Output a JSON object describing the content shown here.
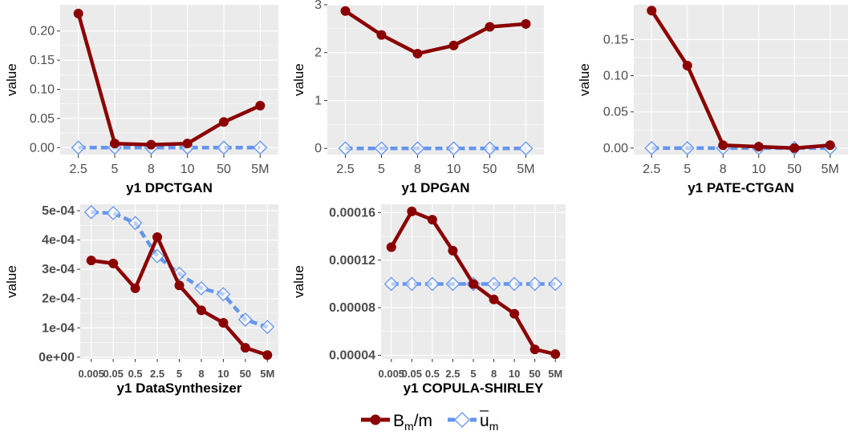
{
  "colors": {
    "bm_series": "#8b0000",
    "um_series": "#6495ed",
    "panel_bg": "#ebebeb",
    "grid": "#ffffff",
    "tick_text": "#4d4d4d"
  },
  "legend": {
    "bm_label_main": "B",
    "bm_label_sub": "m",
    "bm_label_tail": "/m",
    "um_label_main": "u",
    "um_label_sub": "m"
  },
  "chart_data": [
    {
      "type": "line",
      "title": "",
      "xlabel": "y1 DPCTGAN",
      "ylabel": "value",
      "categories": [
        "2.5",
        "5",
        "8",
        "10",
        "50",
        "5M"
      ],
      "ylim": [
        -0.012,
        0.245
      ],
      "yticks": [
        0.0,
        0.05,
        0.1,
        0.15,
        0.2
      ],
      "ytick_labels": [
        "0.00",
        "0.05",
        "0.10",
        "0.15",
        "0.20"
      ],
      "series": [
        {
          "name": "Bm/m",
          "values": [
            0.23,
            0.007,
            0.005,
            0.007,
            0.044,
            0.072
          ]
        },
        {
          "name": "um",
          "values": [
            0.0,
            0.0,
            0.0,
            0.0,
            0.0,
            0.0
          ]
        }
      ]
    },
    {
      "type": "line",
      "title": "",
      "xlabel": "y1 DPGAN",
      "ylabel": "value",
      "categories": [
        "2.5",
        "5",
        "8",
        "10",
        "50",
        "5M"
      ],
      "ylim": [
        -0.13,
        3.0
      ],
      "yticks": [
        0,
        1,
        2,
        3
      ],
      "ytick_labels": [
        "0",
        "1",
        "2",
        "3"
      ],
      "series": [
        {
          "name": "Bm/m",
          "values": [
            2.87,
            2.37,
            1.98,
            2.15,
            2.54,
            2.6
          ]
        },
        {
          "name": "um",
          "values": [
            0.0,
            0.0,
            0.0,
            0.0,
            0.0,
            0.0
          ]
        }
      ]
    },
    {
      "type": "line",
      "title": "",
      "xlabel": "y1 PATE-CTGAN",
      "ylabel": "value",
      "categories": [
        "2.5",
        "5",
        "8",
        "10",
        "50",
        "5M"
      ],
      "ylim": [
        -0.009,
        0.198
      ],
      "yticks": [
        0.0,
        0.05,
        0.1,
        0.15
      ],
      "ytick_labels": [
        "0.00",
        "0.05",
        "0.10",
        "0.15"
      ],
      "series": [
        {
          "name": "Bm/m",
          "values": [
            0.19,
            0.114,
            0.004,
            0.002,
            0.0,
            0.004
          ]
        },
        {
          "name": "um",
          "values": [
            0.0,
            0.0,
            0.0,
            0.0,
            0.0,
            0.0
          ]
        }
      ]
    },
    {
      "type": "line",
      "title": "",
      "xlabel": "y1 DataSynthesizer",
      "ylabel": "value",
      "categories": [
        "0.005",
        "0.05",
        "0.5",
        "2.5",
        "5",
        "8",
        "10",
        "50",
        "5M"
      ],
      "ylim": [
        -6e-06,
        0.000522
      ],
      "yticks": [
        0.0,
        0.0001,
        0.0002,
        0.0003,
        0.0004,
        0.0005
      ],
      "ytick_labels": [
        "0e+00",
        "1e-04",
        "2e-04",
        "3e-04",
        "4e-04",
        "5e-04"
      ],
      "series": [
        {
          "name": "Bm/m",
          "values": [
            0.00033,
            0.00032,
            0.000235,
            0.00041,
            0.000245,
            0.00016,
            0.000117,
            3.2e-05,
            7e-06
          ]
        },
        {
          "name": "um",
          "values": [
            0.000495,
            0.000492,
            0.000458,
            0.000345,
            0.000285,
            0.000235,
            0.000215,
            0.000128,
            0.000103
          ]
        }
      ]
    },
    {
      "type": "line",
      "title": "",
      "xlabel": "y1 COPULA-SHIRLEY",
      "ylabel": "value",
      "categories": [
        "0.005",
        "0.05",
        "0.5",
        "2.5",
        "5",
        "8",
        "10",
        "50",
        "5M"
      ],
      "ylim": [
        3.7e-05,
        0.000167
      ],
      "yticks": [
        4e-05,
        8e-05,
        0.00012,
        0.00016
      ],
      "ytick_labels": [
        "0.00004",
        "0.00008",
        "0.00012",
        "0.00016"
      ],
      "series": [
        {
          "name": "Bm/m",
          "values": [
            0.000131,
            0.000161,
            0.000154,
            0.000128,
            0.0001,
            8.7e-05,
            7.5e-05,
            4.5e-05,
            4.1e-05
          ]
        },
        {
          "name": "um",
          "values": [
            0.0001,
            0.0001,
            0.0001,
            0.0001,
            0.0001,
            0.0001,
            0.0001,
            0.0001,
            0.0001
          ]
        }
      ]
    }
  ]
}
